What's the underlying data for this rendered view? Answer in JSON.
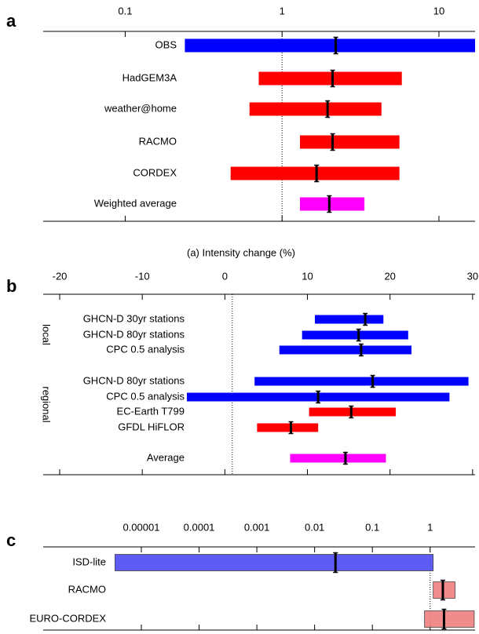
{
  "chart_data": [
    {
      "type": "forest",
      "panel": "a",
      "xscale": "log",
      "xlim": [
        0.03,
        17
      ],
      "xticks": [
        0.1,
        1,
        10
      ],
      "ref_line": 1,
      "categories": [
        "OBS",
        "HadGEM3A",
        "weather@home",
        "RACMO",
        "CORDEX",
        "Weighted average"
      ],
      "low": [
        0.24,
        0.71,
        0.62,
        1.3,
        0.47,
        1.3
      ],
      "best": [
        2.2,
        2.1,
        1.95,
        2.1,
        1.66,
        2.0
      ],
      "high": [
        17,
        5.8,
        4.3,
        5.6,
        5.6,
        3.35
      ],
      "colors": [
        "#0000ff",
        "#ff0000",
        "#ff0000",
        "#ff0000",
        "#ff0000",
        "#ff00ff"
      ]
    },
    {
      "type": "forest",
      "panel": "b",
      "xscale": "linear",
      "xlabel": "(a) Intensity change (%)",
      "xlim": [
        -22,
        30.3
      ],
      "xticks": [
        -20,
        -10,
        0,
        10,
        20,
        30
      ],
      "ref_line": 0.9,
      "groups": [
        {
          "name": "local",
          "first": 0,
          "last": 2
        },
        {
          "name": "regional",
          "first": 3,
          "last": 6
        }
      ],
      "categories": [
        "GHCN-D 30yr stations",
        "GHCN-D 80yr stations",
        "CPC 0.5 analysis",
        "GHCN-D 80yr stations",
        "CPC 0.5 analysis",
        "EC-Earth T799",
        "GFDL HiFLOR",
        "Average"
      ],
      "low": [
        10.9,
        9.35,
        6.6,
        3.6,
        -4.6,
        10.2,
        3.9,
        7.9
      ],
      "best": [
        17.0,
        16.2,
        16.5,
        17.9,
        11.3,
        15.3,
        8.0,
        14.6
      ],
      "high": [
        19.2,
        22.2,
        22.6,
        29.5,
        27.2,
        20.7,
        11.3,
        19.5
      ],
      "colors": [
        "#0000ff",
        "#0000ff",
        "#0000ff",
        "#0000ff",
        "#0000ff",
        "#ff0000",
        "#ff0000",
        "#ff00ff"
      ]
    },
    {
      "type": "forest",
      "panel": "c",
      "xscale": "log",
      "xlim": [
        2e-07,
        6
      ],
      "xticks": [
        1e-05,
        0.0001,
        0.001,
        0.01,
        0.1,
        1
      ],
      "ref_line": 1,
      "bar_outline": true,
      "categories": [
        "ISD-lite",
        "RACMO",
        "EURO-CORDEX"
      ],
      "low": [
        3.5e-06,
        1.13,
        0.8
      ],
      "best": [
        0.023,
        1.66,
        1.74
      ],
      "high": [
        1.13,
        2.7,
        5.8
      ],
      "colors": [
        "#4b4bf5",
        "#f08080",
        "#f08080"
      ]
    }
  ]
}
